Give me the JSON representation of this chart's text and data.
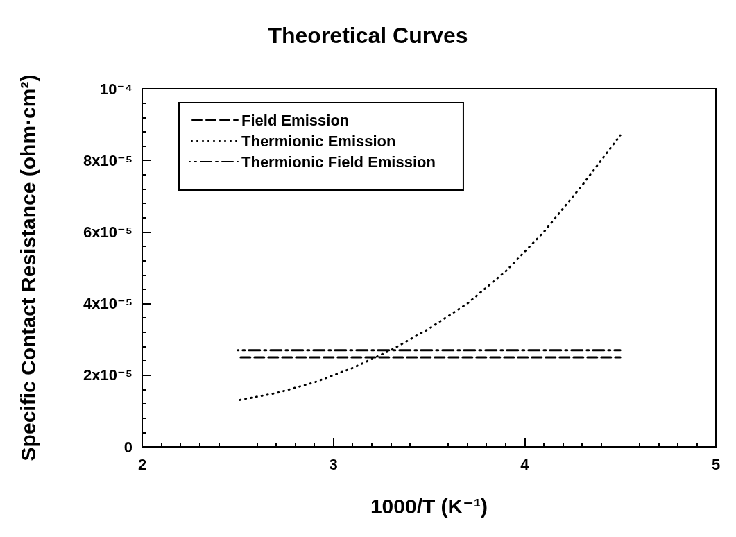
{
  "chart_data": {
    "type": "line",
    "title": "Theoretical Curves",
    "xlabel": "1000/T (K⁻¹)",
    "ylabel": "Specific Contact Resistance (ohm·cm²)",
    "xlim": [
      2,
      5
    ],
    "xticks": [
      2,
      3,
      4,
      5
    ],
    "ylim": [
      0,
      0.0001
    ],
    "yticks": [
      0,
      {
        "value": 2e-05,
        "label": "2x10⁻⁵"
      },
      {
        "value": 4e-05,
        "label": "4x10⁻⁵"
      },
      {
        "value": 6e-05,
        "label": "6x10⁻⁵"
      },
      {
        "value": 8e-05,
        "label": "8x10⁻⁵"
      },
      {
        "value": 0.0001,
        "label": "10⁻⁴"
      }
    ],
    "grid": false,
    "legend": "top left",
    "marker": "none",
    "series": [
      {
        "name": "Field Emission",
        "color": "#000000",
        "line_style": "dashed",
        "x": [
          2.5,
          4.5
        ],
        "values": [
          2.5e-05,
          2.5e-05
        ]
      },
      {
        "name": "Thermionic Emission",
        "color": "#000000",
        "line_style": "dotted",
        "x": [
          2.5,
          2.7,
          2.9,
          3.1,
          3.3,
          3.5,
          3.7,
          3.9,
          4.1,
          4.3,
          4.5
        ],
        "values": [
          1.3e-05,
          1.5e-05,
          1.8e-05,
          2.2e-05,
          2.7e-05,
          3.3e-05,
          4e-05,
          4.9e-05,
          6e-05,
          7.3e-05,
          8.7e-05
        ]
      },
      {
        "name": "Thermionic Field Emission",
        "color": "#000000",
        "line_style": "dashdot",
        "x": [
          2.5,
          4.5
        ],
        "values": [
          2.7e-05,
          2.7e-05
        ]
      }
    ]
  }
}
